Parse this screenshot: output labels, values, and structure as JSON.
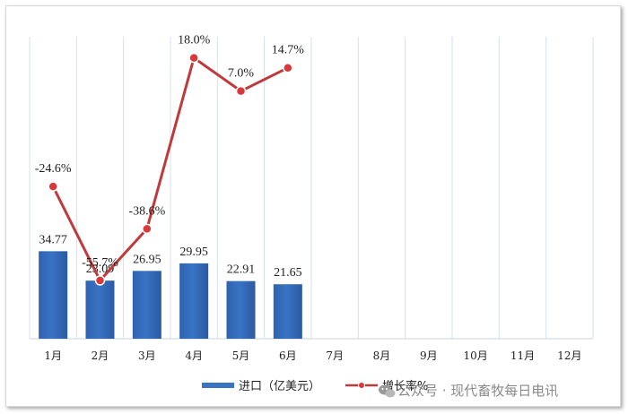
{
  "chart_data": {
    "type": "bar",
    "categories": [
      "1月",
      "2月",
      "3月",
      "4月",
      "5月",
      "6月",
      "7月",
      "8月",
      "9月",
      "10月",
      "11月",
      "12月"
    ],
    "series": [
      {
        "name": "进口（亿美元）",
        "type": "bar",
        "values": [
          34.77,
          23.09,
          26.95,
          29.95,
          22.91,
          21.65,
          null,
          null,
          null,
          null,
          null,
          null
        ],
        "labels": [
          "34.77",
          "23.09",
          "26.95",
          "29.95",
          "22.91",
          "21.65"
        ],
        "color": "#3a73c4",
        "axis": "left",
        "ylim": [
          0,
          120
        ]
      },
      {
        "name": "增长率%",
        "type": "line",
        "values": [
          -24.6,
          -55.7,
          -38.6,
          18.0,
          7.0,
          14.7,
          null,
          null,
          null,
          null,
          null,
          null
        ],
        "labels": [
          "-24.6%",
          "-55.7%",
          "-38.6%",
          "18.0%",
          "7.0%",
          "14.7%"
        ],
        "color": "#c0393b",
        "marker_color": "#d9383a",
        "axis": "right",
        "ylim": [
          -75,
          25
        ]
      }
    ],
    "grid": "vertical",
    "legend_position": "bottom"
  },
  "watermark": {
    "icon": "wechat-icon",
    "text": "公众号 · 现代畜牧每日电讯"
  }
}
